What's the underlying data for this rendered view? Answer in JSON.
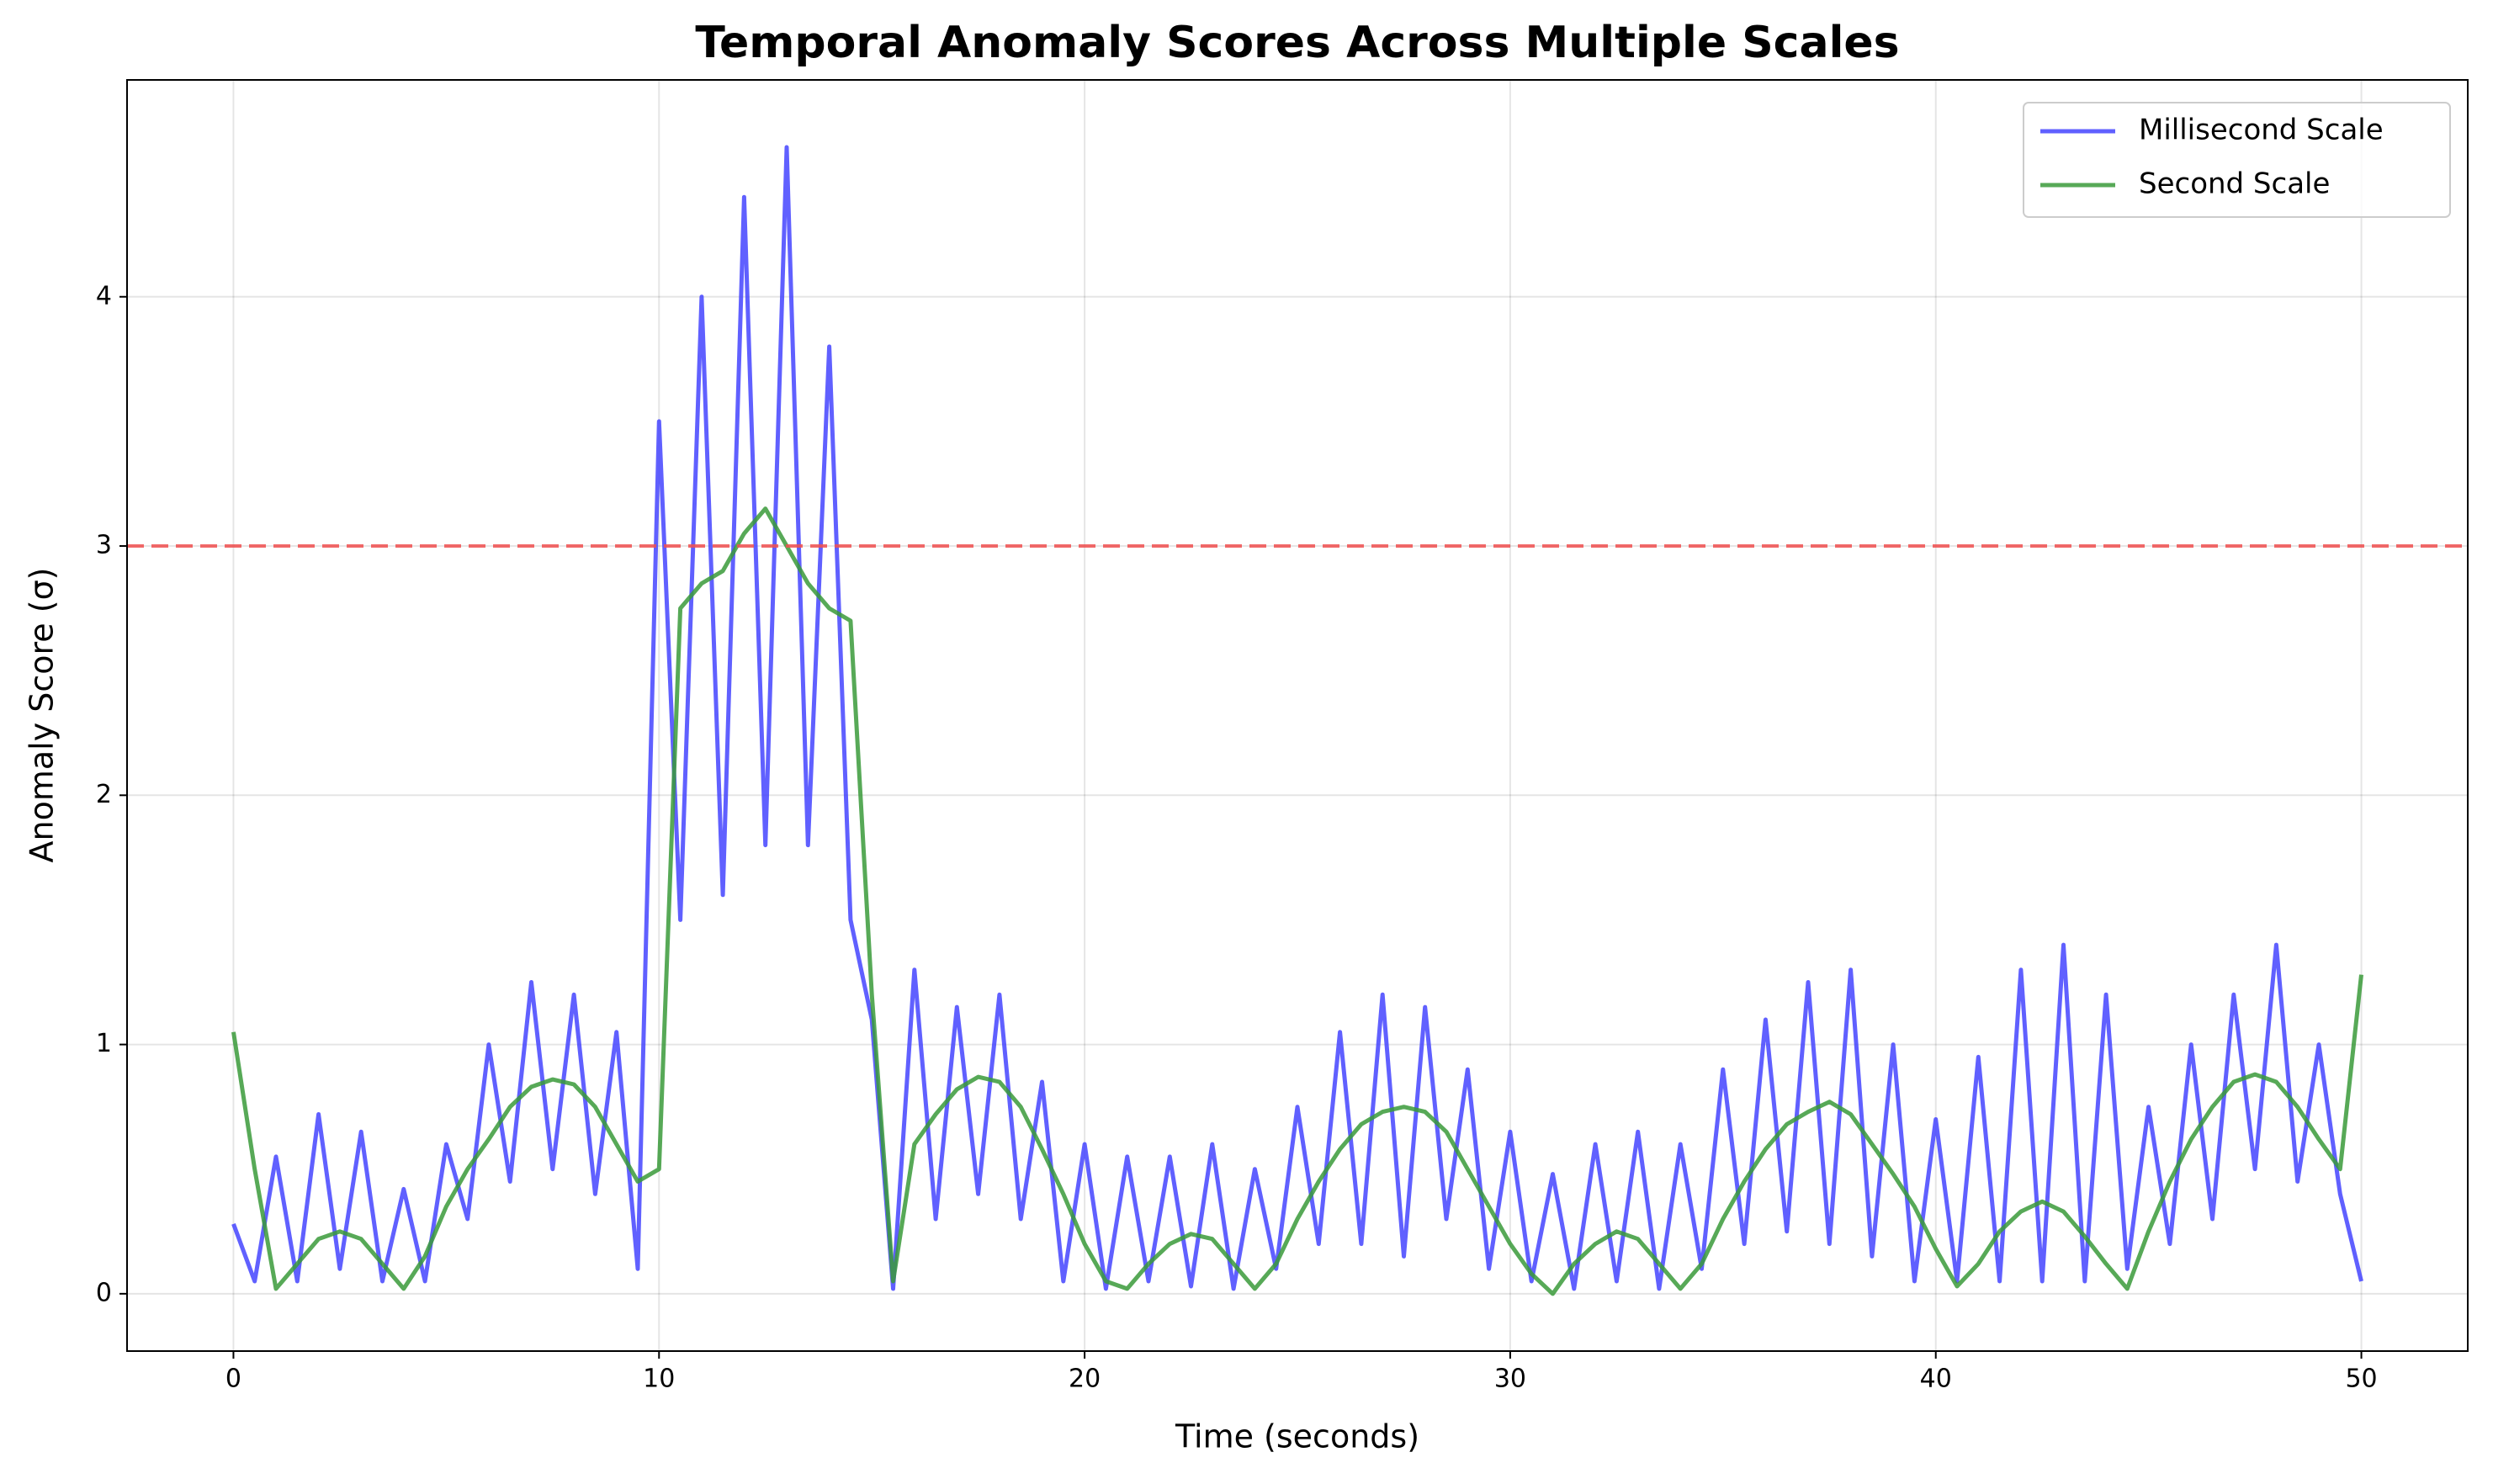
{
  "chart_data": {
    "type": "line",
    "title": "Temporal Anomaly Scores Across Multiple Scales",
    "x_label": "Time (seconds)",
    "y_label": "Anomaly Score (σ)",
    "x": [
      0,
      0.5,
      1,
      1.5,
      2,
      2.5,
      3,
      3.5,
      4,
      4.5,
      5,
      5.5,
      6,
      6.5,
      7,
      7.5,
      8,
      8.5,
      9,
      9.5,
      10,
      10.5,
      11,
      11.5,
      12,
      12.5,
      13,
      13.5,
      14,
      14.5,
      15,
      15.5,
      16,
      16.5,
      17,
      17.5,
      18,
      18.5,
      19,
      19.5,
      20,
      20.5,
      21,
      21.5,
      22,
      22.5,
      23,
      23.5,
      24,
      24.5,
      25,
      25.5,
      26,
      26.5,
      27,
      27.5,
      28,
      28.5,
      29,
      29.5,
      30,
      30.5,
      31,
      31.5,
      32,
      32.5,
      33,
      33.5,
      34,
      34.5,
      35,
      35.5,
      36,
      36.5,
      37,
      37.5,
      38,
      38.5,
      39,
      39.5,
      40,
      40.5,
      41,
      41.5,
      42,
      42.5,
      43,
      43.5,
      44,
      44.5,
      45,
      45.5,
      46,
      46.5,
      47,
      47.5,
      48,
      48.5,
      49,
      49.5,
      50
    ],
    "series": [
      {
        "name": "Millisecond Scale",
        "color": "#4444ff",
        "values": [
          0.28,
          0.05,
          0.55,
          0.05,
          0.72,
          0.1,
          0.65,
          0.05,
          0.42,
          0.05,
          0.6,
          0.3,
          1.0,
          0.45,
          1.25,
          0.5,
          1.2,
          0.4,
          1.05,
          0.1,
          3.5,
          1.5,
          4.0,
          1.6,
          4.4,
          1.8,
          4.6,
          1.8,
          3.8,
          1.5,
          1.1,
          0.02,
          1.3,
          0.3,
          1.15,
          0.4,
          1.2,
          0.3,
          0.85,
          0.05,
          0.6,
          0.02,
          0.55,
          0.05,
          0.55,
          0.03,
          0.6,
          0.02,
          0.5,
          0.1,
          0.75,
          0.2,
          1.05,
          0.2,
          1.2,
          0.15,
          1.15,
          0.3,
          0.9,
          0.1,
          0.65,
          0.05,
          0.48,
          0.02,
          0.6,
          0.05,
          0.65,
          0.02,
          0.6,
          0.1,
          0.9,
          0.2,
          1.1,
          0.25,
          1.25,
          0.2,
          1.3,
          0.15,
          1.0,
          0.05,
          0.7,
          0.05,
          0.95,
          0.05,
          1.3,
          0.05,
          1.4,
          0.05,
          1.2,
          0.1,
          0.75,
          0.2,
          1.0,
          0.3,
          1.2,
          0.5,
          1.4,
          0.45,
          1.0,
          0.4,
          0.05
        ]
      },
      {
        "name": "Second Scale",
        "color": "#3a9a3a",
        "values": [
          1.05,
          0.5,
          0.02,
          0.12,
          0.22,
          0.25,
          0.22,
          0.12,
          0.02,
          0.15,
          0.35,
          0.5,
          0.62,
          0.75,
          0.83,
          0.86,
          0.84,
          0.75,
          0.6,
          0.45,
          0.5,
          2.75,
          2.85,
          2.9,
          3.05,
          3.15,
          3.0,
          2.85,
          2.75,
          2.7,
          1.2,
          0.05,
          0.6,
          0.72,
          0.82,
          0.87,
          0.85,
          0.75,
          0.58,
          0.4,
          0.2,
          0.05,
          0.02,
          0.12,
          0.2,
          0.24,
          0.22,
          0.12,
          0.02,
          0.12,
          0.3,
          0.45,
          0.58,
          0.68,
          0.73,
          0.75,
          0.73,
          0.65,
          0.5,
          0.35,
          0.2,
          0.08,
          0.0,
          0.12,
          0.2,
          0.25,
          0.22,
          0.12,
          0.02,
          0.12,
          0.3,
          0.45,
          0.58,
          0.68,
          0.73,
          0.77,
          0.72,
          0.6,
          0.48,
          0.35,
          0.18,
          0.03,
          0.12,
          0.25,
          0.33,
          0.37,
          0.33,
          0.23,
          0.12,
          0.02,
          0.25,
          0.45,
          0.62,
          0.75,
          0.85,
          0.88,
          0.85,
          0.75,
          0.62,
          0.5,
          1.28
        ]
      }
    ],
    "threshold": 3,
    "threshold_color": "#f05050",
    "xlim": [
      -2.5,
      52.5
    ],
    "xticks": [
      0,
      10,
      20,
      30,
      40,
      50
    ],
    "ylim": [
      -0.23,
      4.87
    ],
    "yticks": [
      0,
      1,
      2,
      3,
      4
    ],
    "grid": true,
    "legend": "upper right"
  }
}
